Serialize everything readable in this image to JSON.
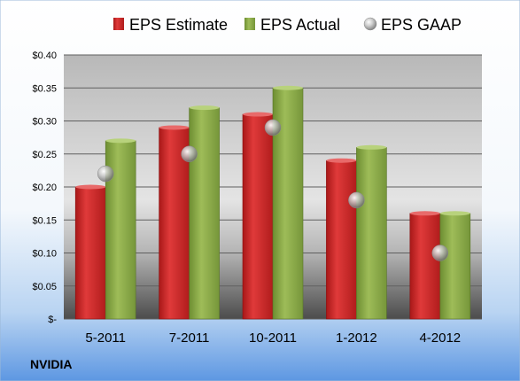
{
  "footer_label": "NVIDIA",
  "colors": {
    "estimate": "#d42a2a",
    "actual": "#8eae48",
    "gaap": "#a8a8a8",
    "grid": "#606060",
    "background_top": "#e8f4fc",
    "background_bottom": "#6fa6e6"
  },
  "chart_data": {
    "type": "bar",
    "categories": [
      "5-2011",
      "7-2011",
      "10-2011",
      "1-2012",
      "4-2012"
    ],
    "series": [
      {
        "name": "EPS Estimate",
        "values": [
          0.2,
          0.29,
          0.31,
          0.24,
          0.16
        ],
        "style": "bar",
        "color": "#d42a2a"
      },
      {
        "name": "EPS Actual",
        "values": [
          0.27,
          0.32,
          0.35,
          0.26,
          0.16
        ],
        "style": "bar",
        "color": "#8eae48"
      },
      {
        "name": "EPS GAAP",
        "values": [
          0.22,
          0.25,
          0.29,
          0.18,
          0.1
        ],
        "style": "marker",
        "color": "#a8a8a8"
      }
    ],
    "ytick_labels": [
      "$-",
      "$0.05",
      "$0.10",
      "$0.15",
      "$0.20",
      "$0.25",
      "$0.30",
      "$0.35",
      "$0.40"
    ],
    "ytick_values": [
      0,
      0.05,
      0.1,
      0.15,
      0.2,
      0.25,
      0.3,
      0.35,
      0.4
    ],
    "ylim": [
      0,
      0.4
    ],
    "grid": true,
    "legend_position": "top"
  }
}
